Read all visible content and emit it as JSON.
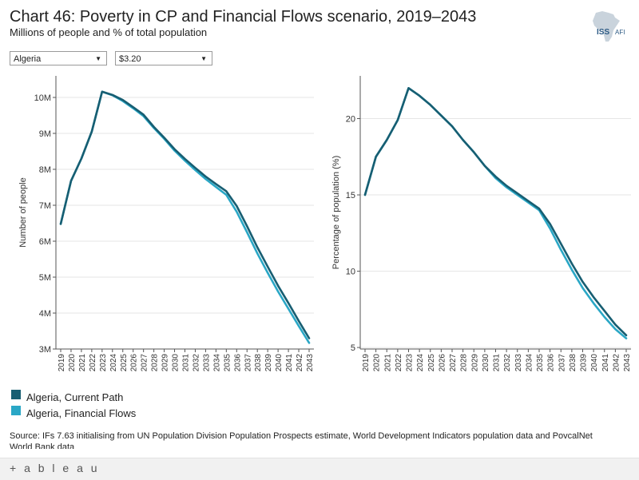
{
  "header": {
    "title": "Chart 46: Poverty in CP and Financial Flows scenario, 2019–2043",
    "subtitle": "Millions of people and % of total population",
    "logo_text_1": "ISS",
    "logo_text_2": "AFI"
  },
  "filters": {
    "country": "Algeria",
    "threshold": "$3.20"
  },
  "colors": {
    "current_path": "#175e72",
    "financial_flows": "#2aa7c6",
    "axis": "#555555",
    "grid": "#e6e6e6"
  },
  "legend": {
    "items": [
      {
        "label": "Algeria, Current Path",
        "color": "#175e72"
      },
      {
        "label": "Algeria, Financial Flows",
        "color": "#2aa7c6"
      }
    ]
  },
  "source": "Source: IFs 7.63 initialising from UN Population Division Population Prospects estimate, World Development Indicators population data and PovcalNet World Bank data",
  "footer": {
    "brand": "+ a b l e a u"
  },
  "chart_data": [
    {
      "type": "line",
      "title": "",
      "xlabel": "",
      "ylabel": "Number of people",
      "ylim": [
        3,
        10.6
      ],
      "yticks": [
        3,
        4,
        5,
        6,
        7,
        8,
        9,
        10
      ],
      "ytick_labels": [
        "3M",
        "4M",
        "5M",
        "6M",
        "7M",
        "8M",
        "9M",
        "10M"
      ],
      "x": [
        "2019",
        "2020",
        "2021",
        "2022",
        "2023",
        "2024",
        "2025",
        "2026",
        "2027",
        "2028",
        "2029",
        "2030",
        "2031",
        "2032",
        "2033",
        "2034",
        "2035",
        "2036",
        "2037",
        "2038",
        "2039",
        "2040",
        "2041",
        "2042",
        "2043"
      ],
      "series": [
        {
          "name": "Algeria, Financial Flows",
          "values": [
            6.48,
            7.68,
            8.3,
            9.05,
            10.16,
            10.06,
            9.9,
            9.7,
            9.48,
            9.15,
            8.85,
            8.52,
            8.24,
            7.98,
            7.73,
            7.51,
            7.29,
            6.82,
            6.25,
            5.66,
            5.12,
            4.6,
            4.12,
            3.64,
            3.17
          ]
        },
        {
          "name": "Algeria, Current Path",
          "values": [
            6.48,
            7.68,
            8.3,
            9.05,
            10.16,
            10.07,
            9.93,
            9.73,
            9.52,
            9.18,
            8.88,
            8.56,
            8.29,
            8.04,
            7.8,
            7.59,
            7.39,
            6.98,
            6.42,
            5.83,
            5.29,
            4.76,
            4.28,
            3.78,
            3.3
          ]
        }
      ]
    },
    {
      "type": "line",
      "title": "",
      "xlabel": "",
      "ylabel": "Percentage of population (%)",
      "ylim": [
        4.9,
        22.8
      ],
      "yticks": [
        5,
        10,
        15,
        20
      ],
      "ytick_labels": [
        "5",
        "10",
        "15",
        "20"
      ],
      "x": [
        "2019",
        "2020",
        "2021",
        "2022",
        "2023",
        "2024",
        "2025",
        "2026",
        "2027",
        "2028",
        "2029",
        "2030",
        "2031",
        "2032",
        "2033",
        "2034",
        "2035",
        "2036",
        "2037",
        "2038",
        "2039",
        "2040",
        "2041",
        "2042",
        "2043"
      ],
      "series": [
        {
          "name": "Algeria, Financial Flows",
          "values": [
            15.0,
            17.5,
            18.6,
            19.9,
            22.0,
            21.5,
            20.9,
            20.2,
            19.5,
            18.6,
            17.8,
            16.9,
            16.1,
            15.5,
            15.0,
            14.5,
            14.0,
            12.8,
            11.4,
            10.1,
            8.9,
            7.9,
            7.0,
            6.2,
            5.6
          ]
        },
        {
          "name": "Algeria, Current Path",
          "values": [
            15.0,
            17.5,
            18.6,
            19.9,
            22.0,
            21.5,
            20.9,
            20.2,
            19.5,
            18.6,
            17.8,
            16.9,
            16.2,
            15.6,
            15.1,
            14.6,
            14.1,
            13.1,
            11.8,
            10.5,
            9.3,
            8.3,
            7.4,
            6.5,
            5.8
          ]
        }
      ]
    }
  ]
}
